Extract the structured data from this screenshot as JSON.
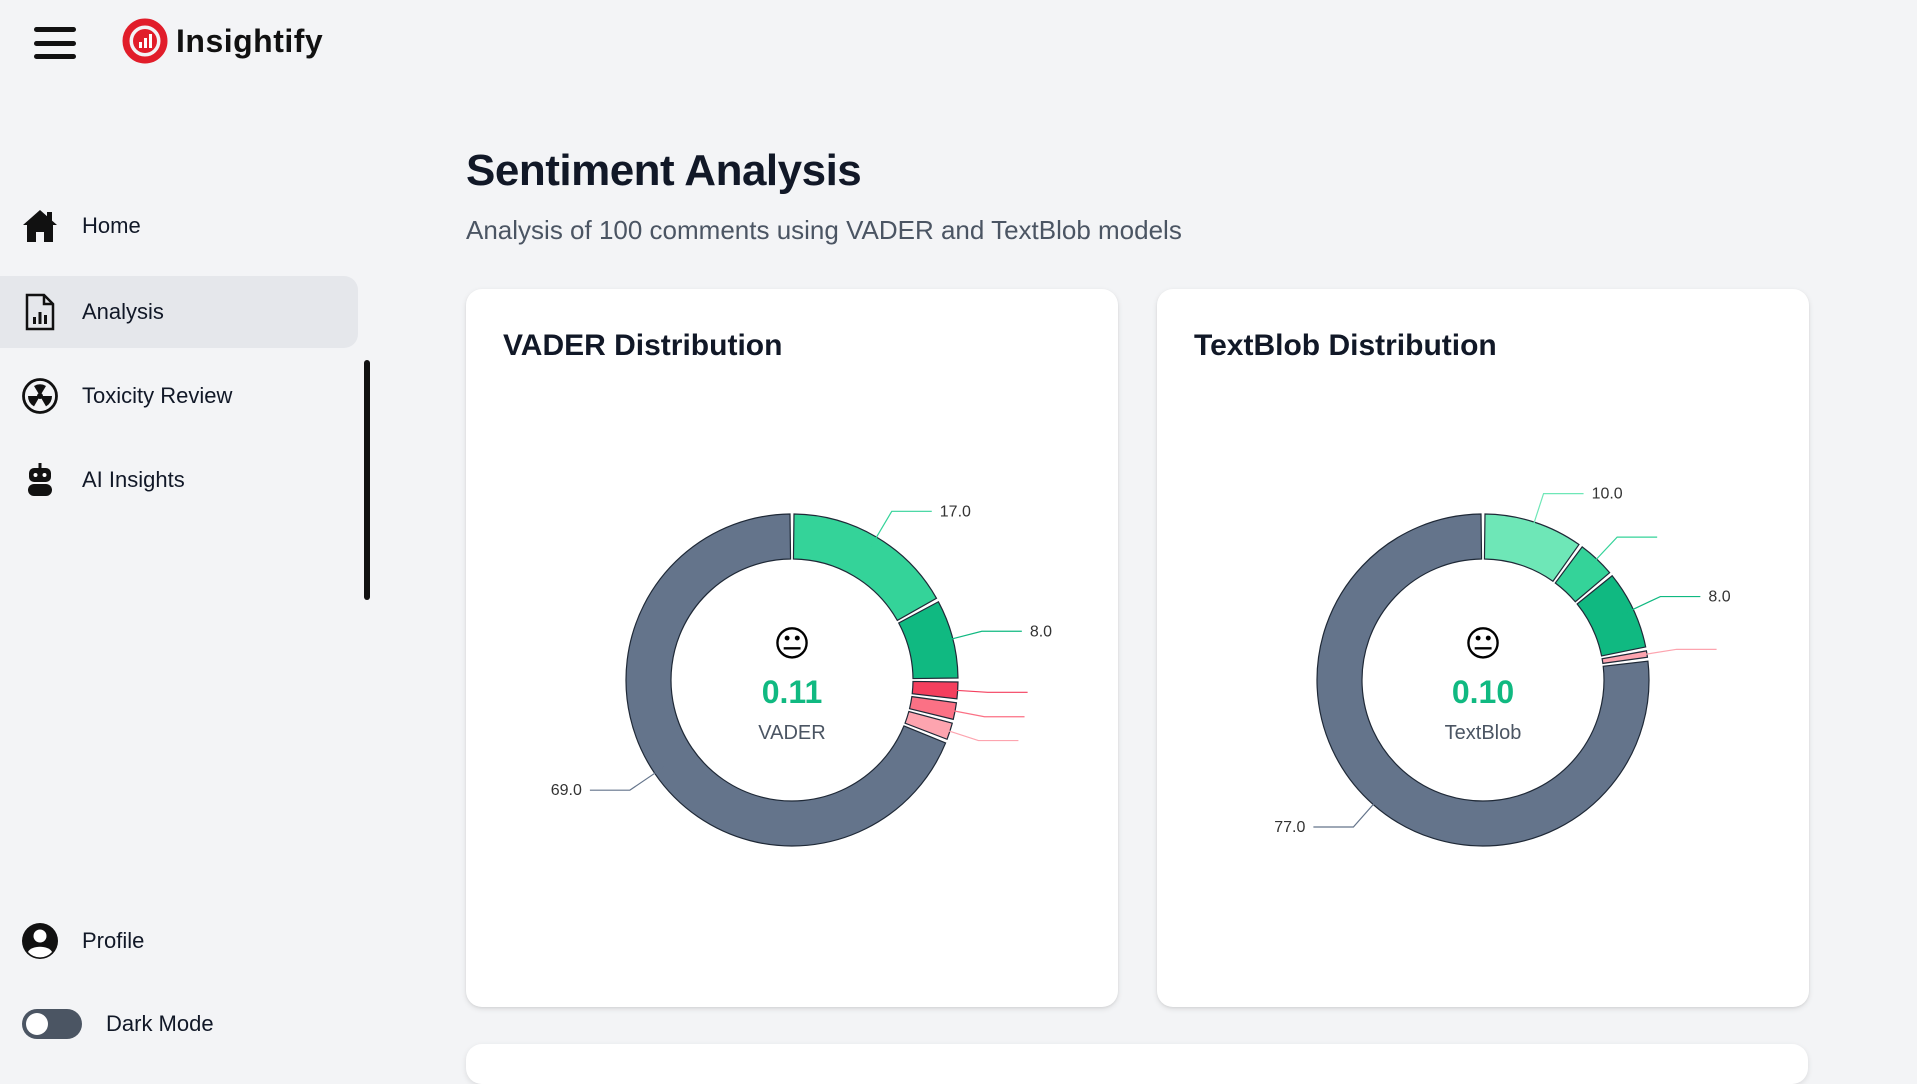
{
  "app": {
    "name": "Insightify"
  },
  "sidebar": {
    "items": [
      {
        "label": "Home",
        "icon": "home-icon"
      },
      {
        "label": "Analysis",
        "icon": "document-chart-icon",
        "active": true
      },
      {
        "label": "Toxicity Review",
        "icon": "radiation-icon"
      },
      {
        "label": "AI Insights",
        "icon": "robot-icon"
      }
    ],
    "profile_label": "Profile",
    "dark_mode_label": "Dark Mode",
    "dark_mode_on": false
  },
  "page": {
    "title": "Sentiment Analysis",
    "subtitle": "Analysis of 100 comments using VADER and TextBlob models"
  },
  "colors": {
    "neutral": "#64748b",
    "positive_light": "#34d399",
    "positive_lighter": "#6ee7b7",
    "positive_dark": "#10b981",
    "negative_strong": "#f43f5e",
    "negative_mid": "#fb7185",
    "negative_light": "#fda4af",
    "score": "#10b981"
  },
  "chart_data": [
    {
      "type": "pie",
      "title": "VADER Distribution",
      "center_emoji": "😐",
      "center_score": "0.11",
      "center_label": "VADER",
      "slices": [
        {
          "value": 17,
          "label": "17.0",
          "color": "#34d399"
        },
        {
          "value": 8,
          "label": "8.0",
          "color": "#10b981"
        },
        {
          "value": 2,
          "label": "",
          "color": "#f43f5e"
        },
        {
          "value": 2,
          "label": "",
          "color": "#fb7185"
        },
        {
          "value": 2,
          "label": "",
          "color": "#fda4af"
        },
        {
          "value": 69,
          "label": "69.0",
          "color": "#64748b"
        }
      ]
    },
    {
      "type": "pie",
      "title": "TextBlob Distribution",
      "center_emoji": "😐",
      "center_score": "0.10",
      "center_label": "TextBlob",
      "slices": [
        {
          "value": 10,
          "label": "10.0",
          "color": "#6ee7b7"
        },
        {
          "value": 4,
          "label": "",
          "color": "#34d399"
        },
        {
          "value": 8,
          "label": "8.0",
          "color": "#10b981"
        },
        {
          "value": 1,
          "label": "",
          "color": "#fda4af"
        },
        {
          "value": 77,
          "label": "77.0",
          "color": "#64748b"
        }
      ]
    }
  ]
}
